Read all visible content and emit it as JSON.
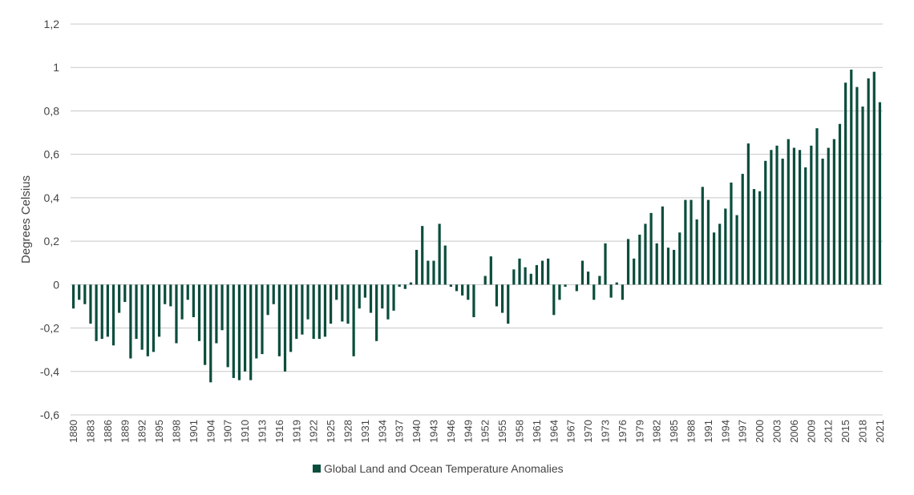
{
  "chart_data": {
    "type": "bar",
    "ylabel": "Degrees Celsius",
    "ylim": [
      -0.6,
      1.2
    ],
    "yticks": [
      {
        "value": -0.6,
        "label": "-0,6"
      },
      {
        "value": -0.4,
        "label": "-0,4"
      },
      {
        "value": -0.2,
        "label": "-0,2"
      },
      {
        "value": 0,
        "label": "0"
      },
      {
        "value": 0.2,
        "label": "0,2"
      },
      {
        "value": 0.4,
        "label": "0,4"
      },
      {
        "value": 0.6,
        "label": "0,6"
      },
      {
        "value": 0.8,
        "label": "0,8"
      },
      {
        "value": 1.0,
        "label": "1"
      },
      {
        "value": 1.2,
        "label": "1,2"
      }
    ],
    "grid": true,
    "legend_position": "bottom",
    "series": [
      {
        "name": "Global Land and Ocean Temperature Anomalies",
        "color": "#0b4d3c",
        "x": [
          1880,
          1881,
          1882,
          1883,
          1884,
          1885,
          1886,
          1887,
          1888,
          1889,
          1890,
          1891,
          1892,
          1893,
          1894,
          1895,
          1896,
          1897,
          1898,
          1899,
          1900,
          1901,
          1902,
          1903,
          1904,
          1905,
          1906,
          1907,
          1908,
          1909,
          1910,
          1911,
          1912,
          1913,
          1914,
          1915,
          1916,
          1917,
          1918,
          1919,
          1920,
          1921,
          1922,
          1923,
          1924,
          1925,
          1926,
          1927,
          1928,
          1929,
          1930,
          1931,
          1932,
          1933,
          1934,
          1935,
          1936,
          1937,
          1938,
          1939,
          1940,
          1941,
          1942,
          1943,
          1944,
          1945,
          1946,
          1947,
          1948,
          1949,
          1950,
          1951,
          1952,
          1953,
          1954,
          1955,
          1956,
          1957,
          1958,
          1959,
          1960,
          1961,
          1962,
          1963,
          1964,
          1965,
          1966,
          1967,
          1968,
          1969,
          1970,
          1971,
          1972,
          1973,
          1974,
          1975,
          1976,
          1977,
          1978,
          1979,
          1980,
          1981,
          1982,
          1983,
          1984,
          1985,
          1986,
          1987,
          1988,
          1989,
          1990,
          1991,
          1992,
          1993,
          1994,
          1995,
          1996,
          1997,
          1998,
          1999,
          2000,
          2001,
          2002,
          2003,
          2004,
          2005,
          2006,
          2007,
          2008,
          2009,
          2010,
          2011,
          2012,
          2013,
          2014,
          2015,
          2016,
          2017,
          2018,
          2019,
          2020,
          2021
        ],
        "values": [
          -0.11,
          -0.07,
          -0.09,
          -0.18,
          -0.26,
          -0.25,
          -0.24,
          -0.28,
          -0.13,
          -0.08,
          -0.34,
          -0.25,
          -0.3,
          -0.33,
          -0.31,
          -0.24,
          -0.09,
          -0.1,
          -0.27,
          -0.16,
          -0.07,
          -0.15,
          -0.26,
          -0.37,
          -0.45,
          -0.27,
          -0.21,
          -0.38,
          -0.43,
          -0.44,
          -0.4,
          -0.44,
          -0.34,
          -0.32,
          -0.14,
          -0.09,
          -0.33,
          -0.4,
          -0.31,
          -0.25,
          -0.23,
          -0.16,
          -0.25,
          -0.25,
          -0.24,
          -0.18,
          -0.07,
          -0.17,
          -0.18,
          -0.33,
          -0.11,
          -0.06,
          -0.13,
          -0.26,
          -0.11,
          -0.16,
          -0.12,
          -0.01,
          -0.02,
          0.01,
          0.16,
          0.27,
          0.11,
          0.11,
          0.28,
          0.18,
          -0.01,
          -0.03,
          -0.05,
          -0.07,
          -0.15,
          0.0,
          0.04,
          0.13,
          -0.1,
          -0.13,
          -0.18,
          0.07,
          0.12,
          0.08,
          0.05,
          0.09,
          0.11,
          0.12,
          -0.14,
          -0.07,
          -0.01,
          0.0,
          -0.03,
          0.11,
          0.06,
          -0.07,
          0.04,
          0.19,
          -0.06,
          0.01,
          -0.07,
          0.21,
          0.12,
          0.23,
          0.28,
          0.33,
          0.19,
          0.36,
          0.17,
          0.16,
          0.24,
          0.39,
          0.39,
          0.3,
          0.45,
          0.39,
          0.24,
          0.28,
          0.35,
          0.47,
          0.32,
          0.51,
          0.65,
          0.44,
          0.43,
          0.57,
          0.62,
          0.64,
          0.58,
          0.67,
          0.63,
          0.62,
          0.54,
          0.64,
          0.72,
          0.58,
          0.63,
          0.67,
          0.74,
          0.93,
          0.99,
          0.91,
          0.82,
          0.95,
          0.98,
          0.84
        ]
      }
    ],
    "x_tick_years": [
      1880,
      1883,
      1886,
      1889,
      1892,
      1895,
      1898,
      1901,
      1904,
      1907,
      1910,
      1913,
      1916,
      1919,
      1922,
      1925,
      1928,
      1931,
      1934,
      1937,
      1940,
      1943,
      1946,
      1949,
      1952,
      1955,
      1958,
      1961,
      1964,
      1967,
      1970,
      1973,
      1976,
      1979,
      1982,
      1985,
      1988,
      1991,
      1994,
      1997,
      2000,
      2003,
      2006,
      2009,
      2012,
      2015,
      2018,
      2021
    ]
  }
}
